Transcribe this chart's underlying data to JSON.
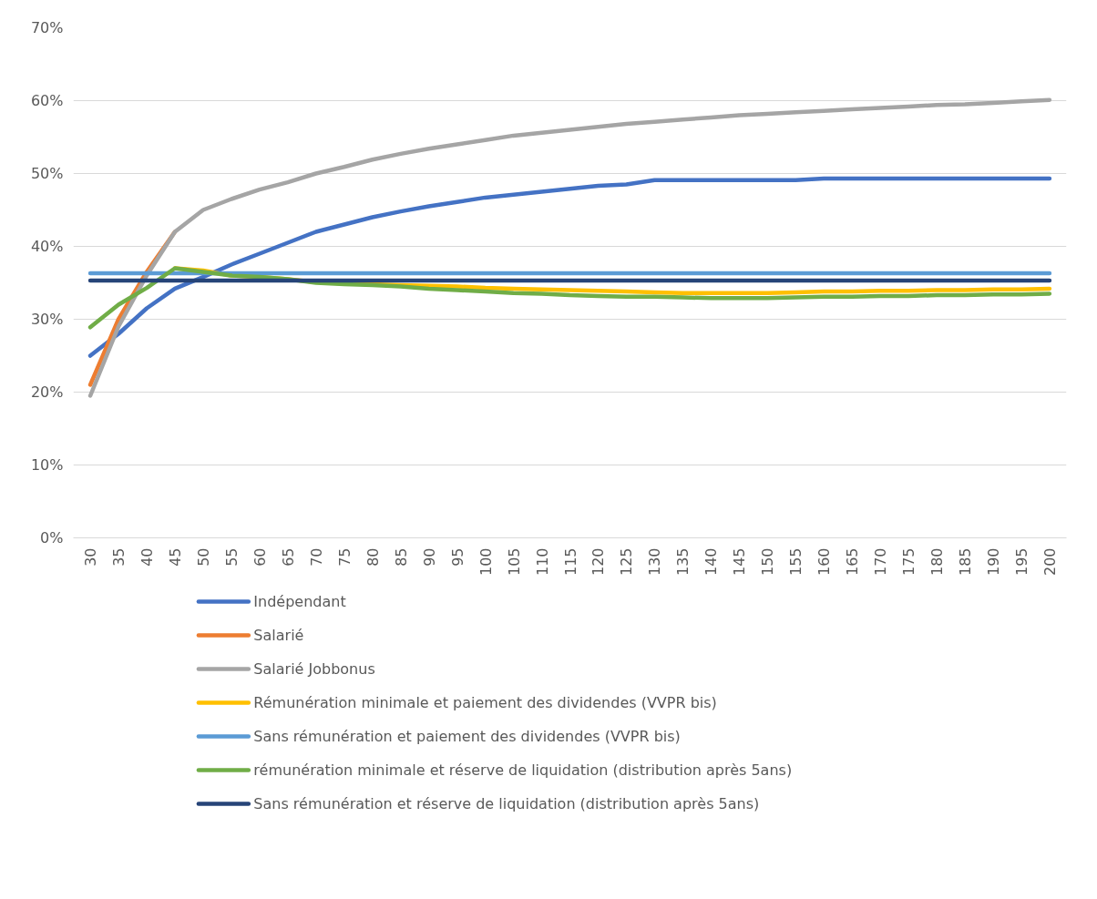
{
  "chart_data": {
    "type": "line",
    "categories": [
      "30",
      "35",
      "40",
      "45",
      "50",
      "55",
      "60",
      "65",
      "70",
      "75",
      "80",
      "85",
      "90",
      "95",
      "100",
      "105",
      "110",
      "115",
      "120",
      "125",
      "130",
      "135",
      "140",
      "145",
      "150",
      "155",
      "160",
      "165",
      "170",
      "175",
      "180",
      "185",
      "190",
      "195",
      "200"
    ],
    "series": [
      {
        "name": "Indépendant",
        "color": "#4472c4",
        "values": [
          25,
          28,
          31.5,
          34.2,
          35.8,
          37.5,
          39,
          40.5,
          42,
          43,
          44,
          44.8,
          45.5,
          46.1,
          46.7,
          47.1,
          47.5,
          47.9,
          48.3,
          48.5,
          49.1,
          49.1,
          49.1,
          49.1,
          49.1,
          49.1,
          49.3,
          49.3,
          49.3,
          49.3,
          49.3,
          49.3,
          49.3,
          49.3,
          49.3
        ]
      },
      {
        "name": "Salarié",
        "color": "#ed7d31",
        "values": [
          21,
          30,
          36.5,
          42,
          null,
          null,
          null,
          null,
          null,
          null,
          null,
          null,
          null,
          null,
          null,
          null,
          null,
          null,
          null,
          null,
          null,
          null,
          null,
          null,
          null,
          null,
          null,
          null,
          null,
          null,
          null,
          null,
          null,
          null,
          null
        ]
      },
      {
        "name": "Salarié Jobbonus",
        "color": "#a5a5a5",
        "values": [
          19.5,
          29,
          36,
          42,
          45,
          46.5,
          47.8,
          48.8,
          50,
          50.9,
          51.9,
          52.7,
          53.4,
          54,
          54.6,
          55.2,
          55.6,
          56,
          56.4,
          56.8,
          57.1,
          57.4,
          57.7,
          58,
          58.2,
          58.4,
          58.6,
          58.8,
          59,
          59.2,
          59.4,
          59.5,
          59.7,
          59.9,
          60.1
        ]
      },
      {
        "name": "Rémunération minimale et paiement des dividendes (VVPR bis)",
        "color": "#ffc000",
        "values": [
          null,
          null,
          null,
          37,
          36.7,
          36,
          35.8,
          35.5,
          35.1,
          34.9,
          34.8,
          34.7,
          34.6,
          34.5,
          34.3,
          34.2,
          34.1,
          34,
          33.9,
          33.8,
          33.7,
          33.6,
          33.6,
          33.6,
          33.6,
          33.7,
          33.8,
          33.8,
          33.9,
          33.9,
          34,
          34,
          34.1,
          34.1,
          34.2
        ]
      },
      {
        "name": "Sans rémunération et paiement des dividendes (VVPR bis)",
        "color": "#5b9bd5",
        "values": [
          36.3,
          36.3,
          36.3,
          36.3,
          36.3,
          36.3,
          36.3,
          36.3,
          36.3,
          36.3,
          36.3,
          36.3,
          36.3,
          36.3,
          36.3,
          36.3,
          36.3,
          36.3,
          36.3,
          36.3,
          36.3,
          36.3,
          36.3,
          36.3,
          36.3,
          36.3,
          36.3,
          36.3,
          36.3,
          36.3,
          36.3,
          36.3,
          36.3,
          36.3,
          36.3
        ]
      },
      {
        "name": "rémunération minimale et réserve de liquidation (distribution après 5ans)",
        "color": "#70ad47",
        "values": [
          28.9,
          32,
          34.3,
          37,
          36.5,
          36,
          35.8,
          35.5,
          35,
          34.8,
          34.7,
          34.5,
          34.2,
          34,
          33.8,
          33.6,
          33.5,
          33.3,
          33.2,
          33.1,
          33.1,
          33,
          32.9,
          32.9,
          32.9,
          33,
          33.1,
          33.1,
          33.2,
          33.2,
          33.3,
          33.3,
          33.4,
          33.4,
          33.5
        ]
      },
      {
        "name": "Sans rémunération et réserve de liquidation (distribution après 5ans)",
        "color": "#264478",
        "values": [
          35.3,
          35.3,
          35.3,
          35.3,
          35.3,
          35.3,
          35.3,
          35.3,
          35.3,
          35.3,
          35.3,
          35.3,
          35.3,
          35.3,
          35.3,
          35.3,
          35.3,
          35.3,
          35.3,
          35.3,
          35.3,
          35.3,
          35.3,
          35.3,
          35.3,
          35.3,
          35.3,
          35.3,
          35.3,
          35.3,
          35.3,
          35.3,
          35.3,
          35.3,
          35.3
        ]
      }
    ],
    "ylim": [
      0,
      70
    ],
    "yticks": [
      {
        "value": 0,
        "label": "0%"
      },
      {
        "value": 10,
        "label": "10%"
      },
      {
        "value": 20,
        "label": "20%"
      },
      {
        "value": 30,
        "label": "30%"
      },
      {
        "value": 40,
        "label": "40%"
      },
      {
        "value": 50,
        "label": "50%"
      },
      {
        "value": 60,
        "label": "60%"
      },
      {
        "value": 70,
        "label": "70%"
      }
    ],
    "grid": "y",
    "legend": "bottom",
    "marker": "none",
    "line_style": "solid"
  }
}
